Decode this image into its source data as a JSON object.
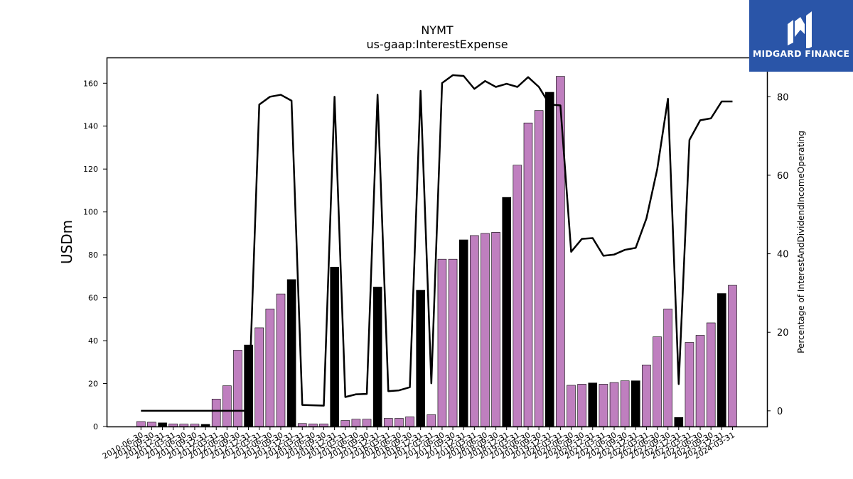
{
  "chart_data": {
    "type": "bar",
    "title": "NYMT",
    "subtitle": "us-gaap:InterestExpense",
    "ylabel": "USDm",
    "y2label": "Percentage of InterestAndDividendIncomeOperating",
    "ylim": [
      0,
      172
    ],
    "y2lim": [
      -4,
      90
    ],
    "yticks": [
      0,
      20,
      40,
      60,
      80,
      100,
      120,
      140,
      160
    ],
    "y2ticks": [
      0,
      20,
      40,
      60,
      80
    ],
    "x": [
      "2010-06-30",
      "2010-09-30",
      "2010-12-31",
      "2011-03-31",
      "2011-06-30",
      "2011-09-30",
      "2011-12-31",
      "2012-03-31",
      "2012-06-30",
      "2012-09-30",
      "2012-12-31",
      "2013-03-31",
      "2013-06-30",
      "2013-09-30",
      "2013-12-31",
      "2014-03-31",
      "2014-06-30",
      "2014-09-30",
      "2014-12-31",
      "2015-03-31",
      "2015-06-30",
      "2015-09-30",
      "2015-12-31",
      "2016-03-31",
      "2016-06-30",
      "2016-09-30",
      "2016-12-31",
      "2017-03-31",
      "2017-06-30",
      "2017-09-30",
      "2017-12-31",
      "2018-03-31",
      "2018-06-30",
      "2018-09-30",
      "2018-12-31",
      "2019-03-31",
      "2019-06-30",
      "2019-09-30",
      "2019-12-31",
      "2020-03-31",
      "2020-06-30",
      "2020-09-30",
      "2020-12-31",
      "2021-03-31",
      "2021-06-30",
      "2021-09-30",
      "2021-12-31",
      "2022-03-31",
      "2022-06-30",
      "2022-09-30",
      "2022-12-31",
      "2023-03-31",
      "2023-06-30",
      "2023-09-30",
      "2023-12-31",
      "2024-03-31"
    ],
    "series": [
      {
        "type": "bar",
        "values": [
          2.3,
          2.0,
          1.7,
          1.2,
          1.1,
          1.1,
          1.0,
          12.8,
          19.0,
          35.6,
          38.0,
          46.0,
          54.8,
          61.8,
          68.5,
          1.4,
          1.2,
          1.2,
          74.3,
          2.8,
          3.4,
          3.4,
          65.0,
          3.8,
          3.8,
          4.5,
          63.5,
          5.5,
          78.0,
          78.0,
          87.0,
          89.0,
          90.0,
          90.5,
          106.8,
          121.8,
          141.5,
          147.3,
          155.8,
          163.2,
          19.2,
          19.7,
          20.3,
          19.7,
          20.5,
          21.3,
          21.3,
          28.7,
          41.8,
          54.8,
          4.2,
          39.2,
          42.5,
          48.3,
          62.0,
          65.8
        ],
        "colors": [
          "#bf7fbf",
          "#bf7fbf",
          "#000000",
          "#bf7fbf",
          "#bf7fbf",
          "#bf7fbf",
          "#000000",
          "#bf7fbf",
          "#bf7fbf",
          "#bf7fbf",
          "#000000",
          "#bf7fbf",
          "#bf7fbf",
          "#bf7fbf",
          "#000000",
          "#bf7fbf",
          "#bf7fbf",
          "#bf7fbf",
          "#000000",
          "#bf7fbf",
          "#bf7fbf",
          "#bf7fbf",
          "#000000",
          "#bf7fbf",
          "#bf7fbf",
          "#bf7fbf",
          "#000000",
          "#bf7fbf",
          "#bf7fbf",
          "#bf7fbf",
          "#000000",
          "#bf7fbf",
          "#bf7fbf",
          "#bf7fbf",
          "#000000",
          "#bf7fbf",
          "#bf7fbf",
          "#bf7fbf",
          "#000000",
          "#bf7fbf",
          "#bf7fbf",
          "#bf7fbf",
          "#000000",
          "#bf7fbf",
          "#bf7fbf",
          "#bf7fbf",
          "#000000",
          "#bf7fbf",
          "#bf7fbf",
          "#bf7fbf",
          "#000000",
          "#bf7fbf",
          "#bf7fbf",
          "#bf7fbf",
          "#000000",
          "#bf7fbf"
        ]
      },
      {
        "type": "line",
        "axis": "right",
        "values": [
          0,
          0,
          0,
          0,
          0,
          0,
          0,
          0,
          0,
          0,
          0,
          78,
          80,
          80.5,
          79,
          1.5,
          1.4,
          1.3,
          80,
          3.5,
          4.2,
          4.3,
          80.5,
          5,
          5.2,
          6,
          81.5,
          7,
          83.5,
          85.5,
          85.3,
          82,
          84,
          82.5,
          83.3,
          82.5,
          85,
          82.5,
          78,
          77.8,
          40.5,
          43.8,
          44,
          39.5,
          39.8,
          41,
          41.5,
          49,
          61.5,
          79.5,
          6.8,
          69,
          74,
          74.5,
          78.8,
          78.8
        ]
      }
    ]
  },
  "logo": {
    "text": "MIDGARD FINANCE",
    "color": "#2a55a8"
  }
}
